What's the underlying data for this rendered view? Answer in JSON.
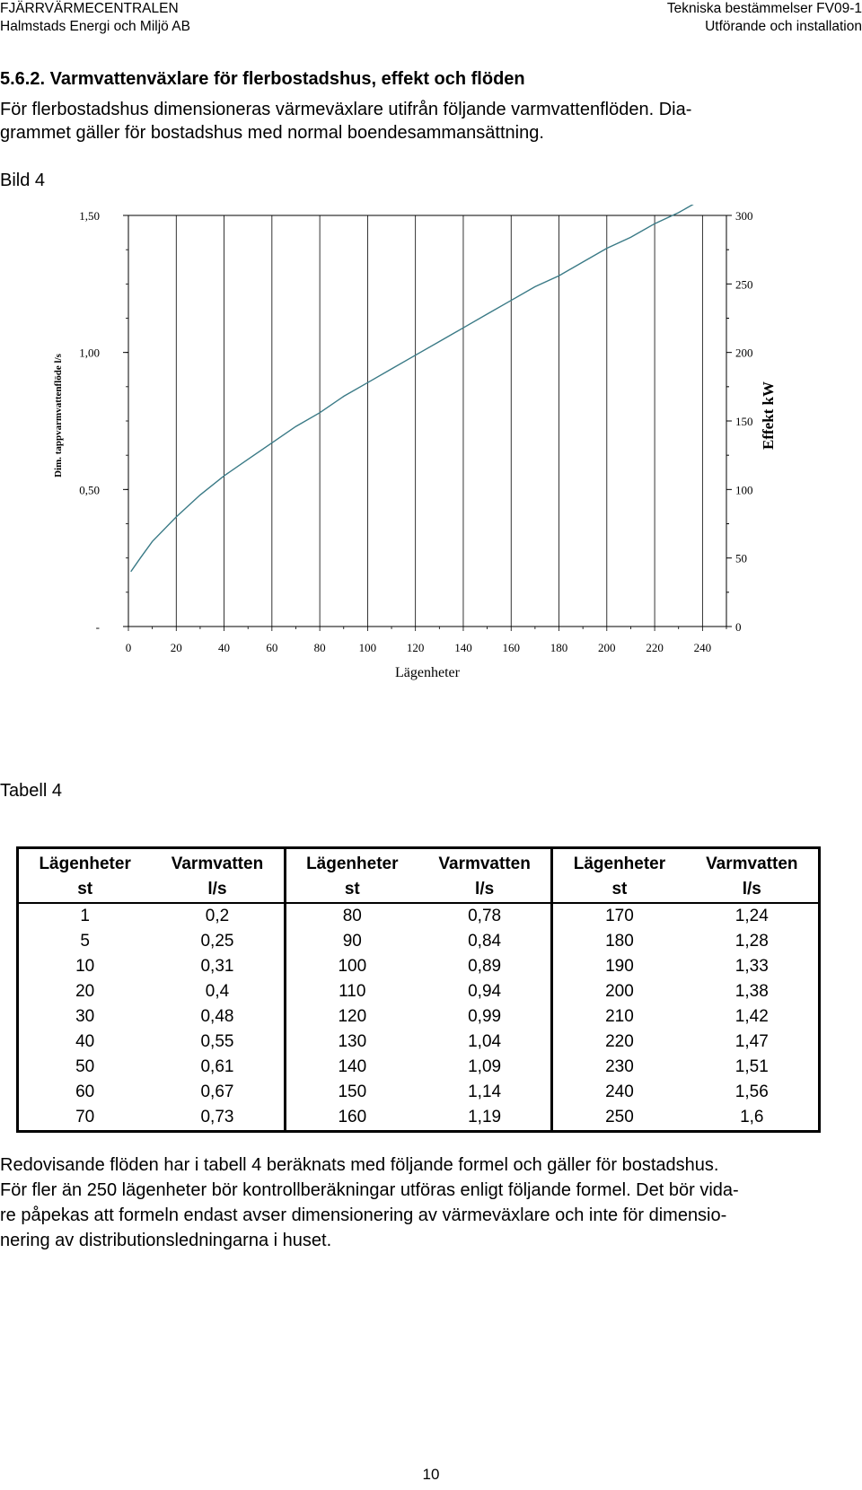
{
  "header": {
    "left_line1": "FJÄRRVÄRMECENTRALEN",
    "left_line2": "Halmstads Energi och Miljö AB",
    "right_line1": "Tekniska bestämmelser FV09-1",
    "right_line2": "Utförande och installation"
  },
  "section_title": "5.6.2.  Varmvattenväxlare för flerbostadshus, effekt och flöden",
  "intro_lines": [
    "För flerbostadshus dimensioneras värmeväxlare utifrån följande varmvattenflöden. Dia-",
    "grammet gäller för bostadshus med normal boendesammansättning."
  ],
  "figure_label": "Bild 4",
  "chart_data": {
    "type": "line",
    "xlabel": "Lägenheter",
    "ylabel_left": "Dim. tappvarmvattenflöde l/s",
    "ylabel_right": "Effekt kW",
    "x_ticks": [
      "0",
      "20",
      "40",
      "60",
      "80",
      "100",
      "120",
      "140",
      "160",
      "180",
      "200",
      "220",
      "240"
    ],
    "y_left_ticks": [
      "-",
      "0,50",
      "1,00",
      "1,50"
    ],
    "y_left_tick_values": [
      0,
      0.5,
      1.0,
      1.5
    ],
    "y_right_ticks": [
      "0",
      "50",
      "100",
      "150",
      "200",
      "250",
      "300"
    ],
    "xlim": [
      0,
      250
    ],
    "ylim_left": [
      0,
      1.5
    ],
    "ylim_right": [
      0,
      300
    ],
    "grid": true,
    "line_color": "#3a7a86",
    "series": [
      {
        "x": [
          1,
          5,
          10,
          20,
          30,
          40,
          50,
          60,
          70,
          80,
          90,
          100,
          110,
          120,
          130,
          140,
          150,
          160,
          170,
          180,
          190,
          200,
          210,
          220,
          230,
          240,
          250
        ],
        "y": [
          0.2,
          0.25,
          0.31,
          0.4,
          0.48,
          0.55,
          0.61,
          0.67,
          0.73,
          0.78,
          0.84,
          0.89,
          0.94,
          0.99,
          1.04,
          1.09,
          1.14,
          1.19,
          1.24,
          1.28,
          1.33,
          1.38,
          1.42,
          1.47,
          1.51,
          1.56,
          1.6
        ]
      }
    ]
  },
  "table_label": "Tabell 4",
  "table": {
    "headers": [
      "Lägenheter",
      "Varmvatten",
      "Lägenheter",
      "Varmvatten",
      "Lägenheter",
      "Varmvatten"
    ],
    "units": [
      "st",
      "l/s",
      "st",
      "l/s",
      "st",
      "l/s"
    ],
    "rows": [
      [
        "1",
        "0,2",
        "80",
        "0,78",
        "170",
        "1,24"
      ],
      [
        "5",
        "0,25",
        "90",
        "0,84",
        "180",
        "1,28"
      ],
      [
        "10",
        "0,31",
        "100",
        "0,89",
        "190",
        "1,33"
      ],
      [
        "20",
        "0,4",
        "110",
        "0,94",
        "200",
        "1,38"
      ],
      [
        "30",
        "0,48",
        "120",
        "0,99",
        "210",
        "1,42"
      ],
      [
        "40",
        "0,55",
        "130",
        "1,04",
        "220",
        "1,47"
      ],
      [
        "50",
        "0,61",
        "140",
        "1,09",
        "230",
        "1,51"
      ],
      [
        "60",
        "0,67",
        "150",
        "1,14",
        "240",
        "1,56"
      ],
      [
        "70",
        "0,73",
        "160",
        "1,19",
        "250",
        "1,6"
      ]
    ]
  },
  "footer_lines": [
    "Redovisande flöden har i tabell 4 beräknats med följande formel och gäller för bostadshus.",
    "För fler än 250 lägenheter bör kontrollberäkningar utföras enligt följande formel. Det bör vida-",
    "re påpekas att formeln endast avser dimensionering av värmeväxlare och inte för dimensio-",
    "nering av distributionsledningarna i huset."
  ],
  "page_number": "10"
}
